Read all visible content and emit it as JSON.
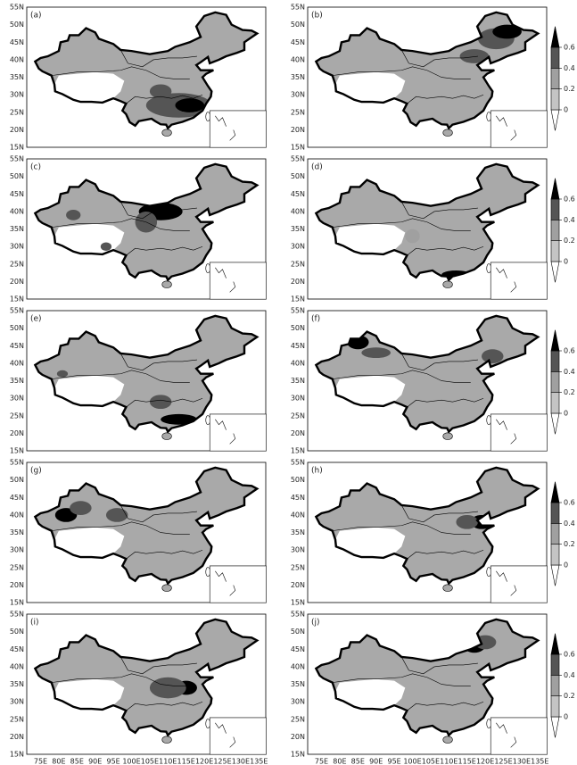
{
  "panels": [
    {
      "label": "(a)"
    },
    {
      "label": "(b)"
    },
    {
      "label": "(c)"
    },
    {
      "label": "(d)"
    },
    {
      "label": "(e)"
    },
    {
      "label": "(f)"
    },
    {
      "label": "(g)"
    },
    {
      "label": "(h)"
    },
    {
      "label": "(i)"
    },
    {
      "label": "(j)"
    }
  ],
  "lat_labels": [
    "55N",
    "50N",
    "45N",
    "40N",
    "35N",
    "30N",
    "25N",
    "20N",
    "15N"
  ],
  "lon_labels": [
    "75E",
    "80E",
    "85E",
    "90E",
    "95E",
    "100E",
    "105E",
    "110E",
    "115E",
    "120E",
    "125E",
    "130E",
    "135E"
  ],
  "colorbar": {
    "ticks": [
      0,
      0.2,
      0.4,
      0.6
    ],
    "colors": [
      "#ffffff",
      "#c4c4c4",
      "#a0a0a0",
      "#555555",
      "#000000"
    ]
  }
}
